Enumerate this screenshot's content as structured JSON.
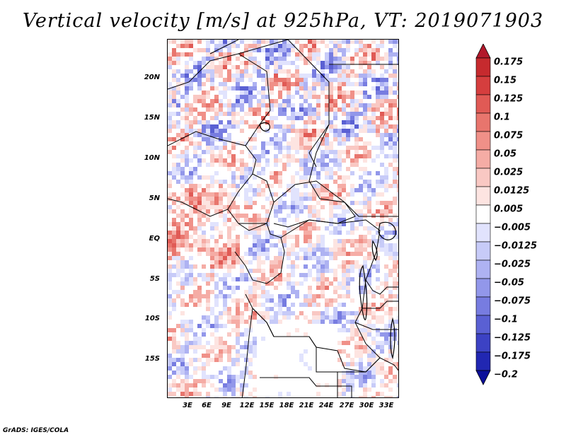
{
  "title": "Vertical velocity [m/s] at 925hPa, VT: 2019071903",
  "credit": "GrADS: IGES/COLA",
  "map": {
    "lat_labels": [
      "20N",
      "15N",
      "10N",
      "5N",
      "EQ",
      "5S",
      "10S",
      "15S"
    ],
    "lon_labels": [
      "3E",
      "6E",
      "9E",
      "12E",
      "15E",
      "18E",
      "21E",
      "24E",
      "27E",
      "30E",
      "33E"
    ]
  },
  "colorbar": {
    "labels": [
      "0.175",
      "0.15",
      "0.125",
      "0.1",
      "0.075",
      "0.05",
      "0.025",
      "0.0125",
      "0.005",
      "−0.005",
      "−0.0125",
      "−0.025",
      "−0.05",
      "−0.075",
      "−0.1",
      "−0.125",
      "−0.175",
      "−0.2"
    ],
    "colors": [
      "#b2182b",
      "#c62a2e",
      "#d53e3e",
      "#e05a55",
      "#e8756d",
      "#f09088",
      "#f5aca5",
      "#f9c8c3",
      "#fde4e1",
      "#ffffff",
      "#e1e3fd",
      "#c7cbf8",
      "#aeb2f2",
      "#9297ea",
      "#777ce0",
      "#5a60d3",
      "#3c42c4",
      "#2127b2",
      "#0b0f9a"
    ]
  }
}
